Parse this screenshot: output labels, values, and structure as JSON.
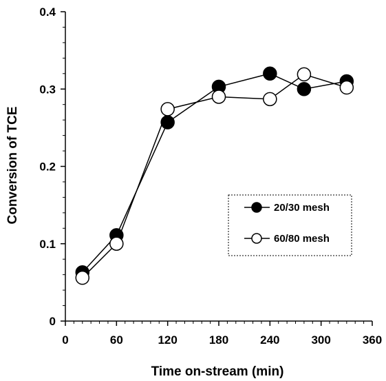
{
  "chart_data": {
    "type": "line",
    "xlabel": "Time on-stream (min)",
    "ylabel": "Conversion of TCE",
    "xlim": [
      0,
      360
    ],
    "ylim": [
      0,
      0.4
    ],
    "x_ticks": [
      0,
      60,
      120,
      180,
      240,
      300,
      360
    ],
    "x_tick_labels": [
      "0",
      "60",
      "120",
      "180",
      "240",
      "300",
      "360"
    ],
    "y_ticks": [
      0,
      0.1,
      0.2,
      0.3,
      0.4
    ],
    "y_tick_labels": [
      "0",
      "0.1",
      "0.2",
      "0.3",
      "0.4"
    ],
    "grid": false,
    "legend_position": "right-middle",
    "series": [
      {
        "name": "20/30 mesh",
        "marker": "filled-circle",
        "color": "#000000",
        "x": [
          20,
          60,
          120,
          180,
          240,
          280,
          330
        ],
        "y": [
          0.063,
          0.111,
          0.257,
          0.303,
          0.32,
          0.3,
          0.31
        ]
      },
      {
        "name": "60/80 mesh",
        "marker": "open-circle",
        "color": "#000000",
        "x": [
          20,
          60,
          120,
          180,
          240,
          280,
          330
        ],
        "y": [
          0.056,
          0.1,
          0.274,
          0.29,
          0.287,
          0.319,
          0.302
        ]
      }
    ]
  }
}
